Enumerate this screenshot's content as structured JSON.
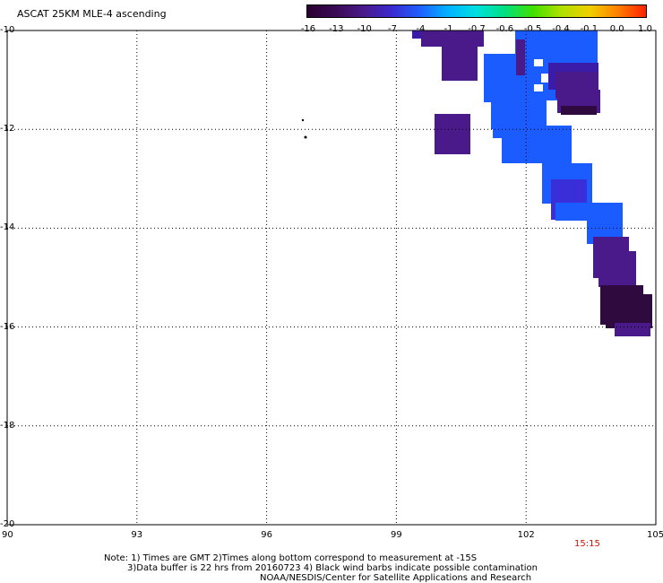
{
  "title": "ASCAT 25KM MLE-4 ascending",
  "colorbar": {
    "labels": [
      "-16",
      "-13",
      "-10",
      "-7",
      "-4",
      "-1",
      "-0.7",
      "-0.6",
      "-0.5",
      "-0.4",
      "-0.1",
      "0.0",
      "1.0"
    ],
    "colors": [
      "#2a0030",
      "#3a0a55",
      "#4a1a8a",
      "#3a2ad0",
      "#1e60ff",
      "#00b4ff",
      "#00e0e0",
      "#00e080",
      "#40e000",
      "#b0e000",
      "#f0d000",
      "#ff8000",
      "#ff2000"
    ]
  },
  "axes": {
    "y_labels": [
      "-10",
      "-12",
      "-14",
      "-16",
      "-18",
      "-20"
    ],
    "x_labels": [
      "90",
      "93",
      "96",
      "99",
      "102",
      "105"
    ],
    "lat_range": [
      -20,
      -10
    ],
    "lon_range": [
      90,
      105
    ]
  },
  "swath_colors": {
    "dark": "#2e0a3e",
    "purple": "#4a1a8a",
    "violet": "#3b1ca8",
    "blue": "#1a5cff",
    "indigo": "#3a2ed8"
  },
  "notes": {
    "line1": "Note: 1) Times are GMT 2)Times along bottom correspond to measurement at -15S",
    "line2": "3)Data buffer is 22 hrs from 20160723 4) Black wind barbs indicate possible contamination",
    "line3": "NOAA/NESDIS/Center for Satellite Applications and Research"
  },
  "time_label": "15:15"
}
